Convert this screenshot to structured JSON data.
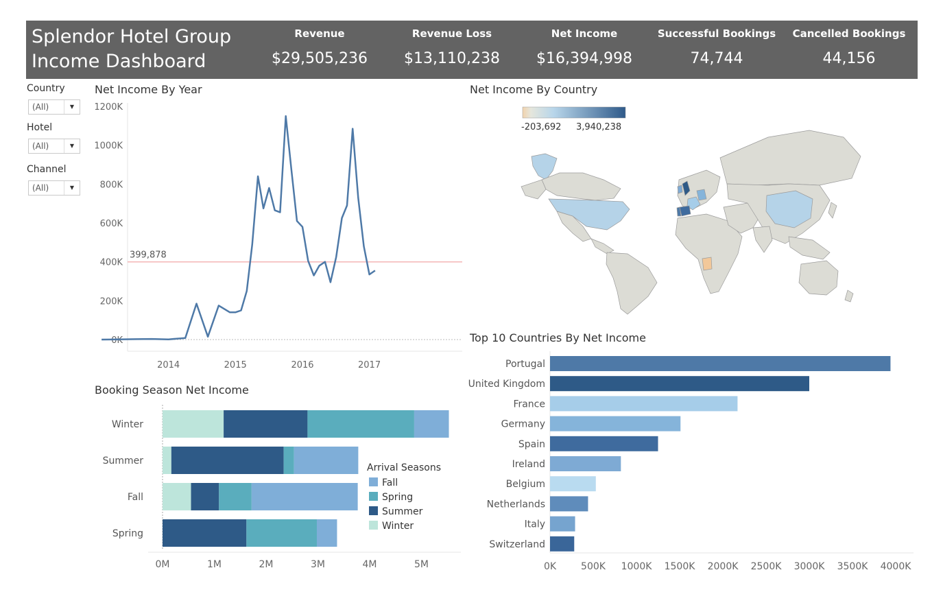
{
  "header": {
    "title_line1": "Splendor Hotel Group",
    "title_line2": "Income Dashboard",
    "kpis": [
      {
        "label": "Revenue",
        "value": "$29,505,236"
      },
      {
        "label": "Revenue Loss",
        "value": "$13,110,238"
      },
      {
        "label": "Net Income",
        "value": "$16,394,998"
      },
      {
        "label": "Successful Bookings",
        "value": "74,744"
      },
      {
        "label": "Cancelled Bookings",
        "value": "44,156"
      }
    ]
  },
  "filters": [
    {
      "label": "Country",
      "value": "(All)"
    },
    {
      "label": "Hotel",
      "value": "(All)"
    },
    {
      "label": "Channel",
      "value": "(All)"
    }
  ],
  "colors": {
    "header_bg": "#636363",
    "line": "#4e79a7",
    "reference_line": "#f4b6b6",
    "fall": "#7faed8",
    "spring": "#5aadbd",
    "summer": "#2e5a87",
    "winter": "#bde5db",
    "map_low": "#f2d3ad",
    "map_high": "#2f5a8a",
    "land": "#dcdcd5"
  },
  "chart_data": [
    {
      "type": "line",
      "title": "Net Income By Year",
      "x_ticks": [
        "2014",
        "2015",
        "2016",
        "2017"
      ],
      "y_ticks": [
        "0K",
        "200K",
        "400K",
        "600K",
        "800K",
        "1000K",
        "1200K"
      ],
      "ylim": [
        0,
        1200000
      ],
      "reference_line": {
        "label": "399,878",
        "value": 399878
      },
      "series": [
        {
          "x": [
            "2013-07",
            "2013-10",
            "2014-01",
            "2014-04",
            "2014-07",
            "2014-10",
            "2014-12",
            "2015-02",
            "2015-04",
            "2015-06",
            "2015-07",
            "2015-08",
            "2015-09",
            "2015-10",
            "2015-11",
            "2015-12",
            "2016-01",
            "2016-02",
            "2016-03",
            "2016-04",
            "2016-05",
            "2016-06",
            "2016-07",
            "2016-08",
            "2016-09",
            "2016-10",
            "2016-11",
            "2016-12",
            "2017-01",
            "2017-02",
            "2017-03",
            "2017-04",
            "2017-05",
            "2017-06",
            "2017-07",
            "2017-08"
          ],
          "values": [
            0,
            1000,
            2000,
            3000,
            1000,
            8000,
            185000,
            15000,
            175000,
            140000,
            140000,
            150000,
            250000,
            490000,
            840000,
            675000,
            780000,
            665000,
            655000,
            1150000,
            880000,
            610000,
            580000,
            405000,
            330000,
            380000,
            400000,
            295000,
            425000,
            625000,
            690000,
            1085000,
            730000,
            480000,
            335000,
            355000
          ]
        }
      ]
    },
    {
      "type": "heatmap",
      "title": "Net Income By Country",
      "color_range": [
        "-203,692",
        "3,940,238"
      ]
    },
    {
      "type": "bar",
      "title": "Booking Season Net Income",
      "orientation": "horizontal",
      "stacked": true,
      "categories": [
        "Winter",
        "Summer",
        "Fall",
        "Spring"
      ],
      "x_ticks": [
        "0M",
        "1M",
        "2M",
        "3M",
        "4M",
        "5M"
      ],
      "xlim": [
        0,
        5700000
      ],
      "legend_title": "Arrival Seasons",
      "series": [
        {
          "name": "Winter",
          "values": [
            1180000,
            170000,
            550000,
            0
          ]
        },
        {
          "name": "Summer",
          "values": [
            1620000,
            2170000,
            540000,
            1620000
          ]
        },
        {
          "name": "Spring",
          "values": [
            2060000,
            200000,
            630000,
            1360000
          ]
        },
        {
          "name": "Fall",
          "values": [
            670000,
            1240000,
            2050000,
            390000
          ]
        }
      ]
    },
    {
      "type": "bar",
      "title": "Top 10 Countries By Net Income",
      "orientation": "horizontal",
      "categories": [
        "Portugal",
        "United Kingdom",
        "France",
        "Germany",
        "Spain",
        "Ireland",
        "Belgium",
        "Netherlands",
        "Italy",
        "Switzerland"
      ],
      "values": [
        3940000,
        3000000,
        2170000,
        1510000,
        1250000,
        820000,
        530000,
        440000,
        290000,
        280000
      ],
      "x_ticks": [
        "0K",
        "500K",
        "1000K",
        "1500K",
        "2000K",
        "2500K",
        "3000K",
        "3500K",
        "4000K"
      ],
      "xlim": [
        0,
        4000000
      ],
      "colors": [
        "#4e79a7",
        "#2e5a87",
        "#a6cde9",
        "#85b4da",
        "#3f6b9e",
        "#7eaad4",
        "#b9dbf0",
        "#5f8cbb",
        "#76a4cf",
        "#3a6699"
      ]
    }
  ]
}
